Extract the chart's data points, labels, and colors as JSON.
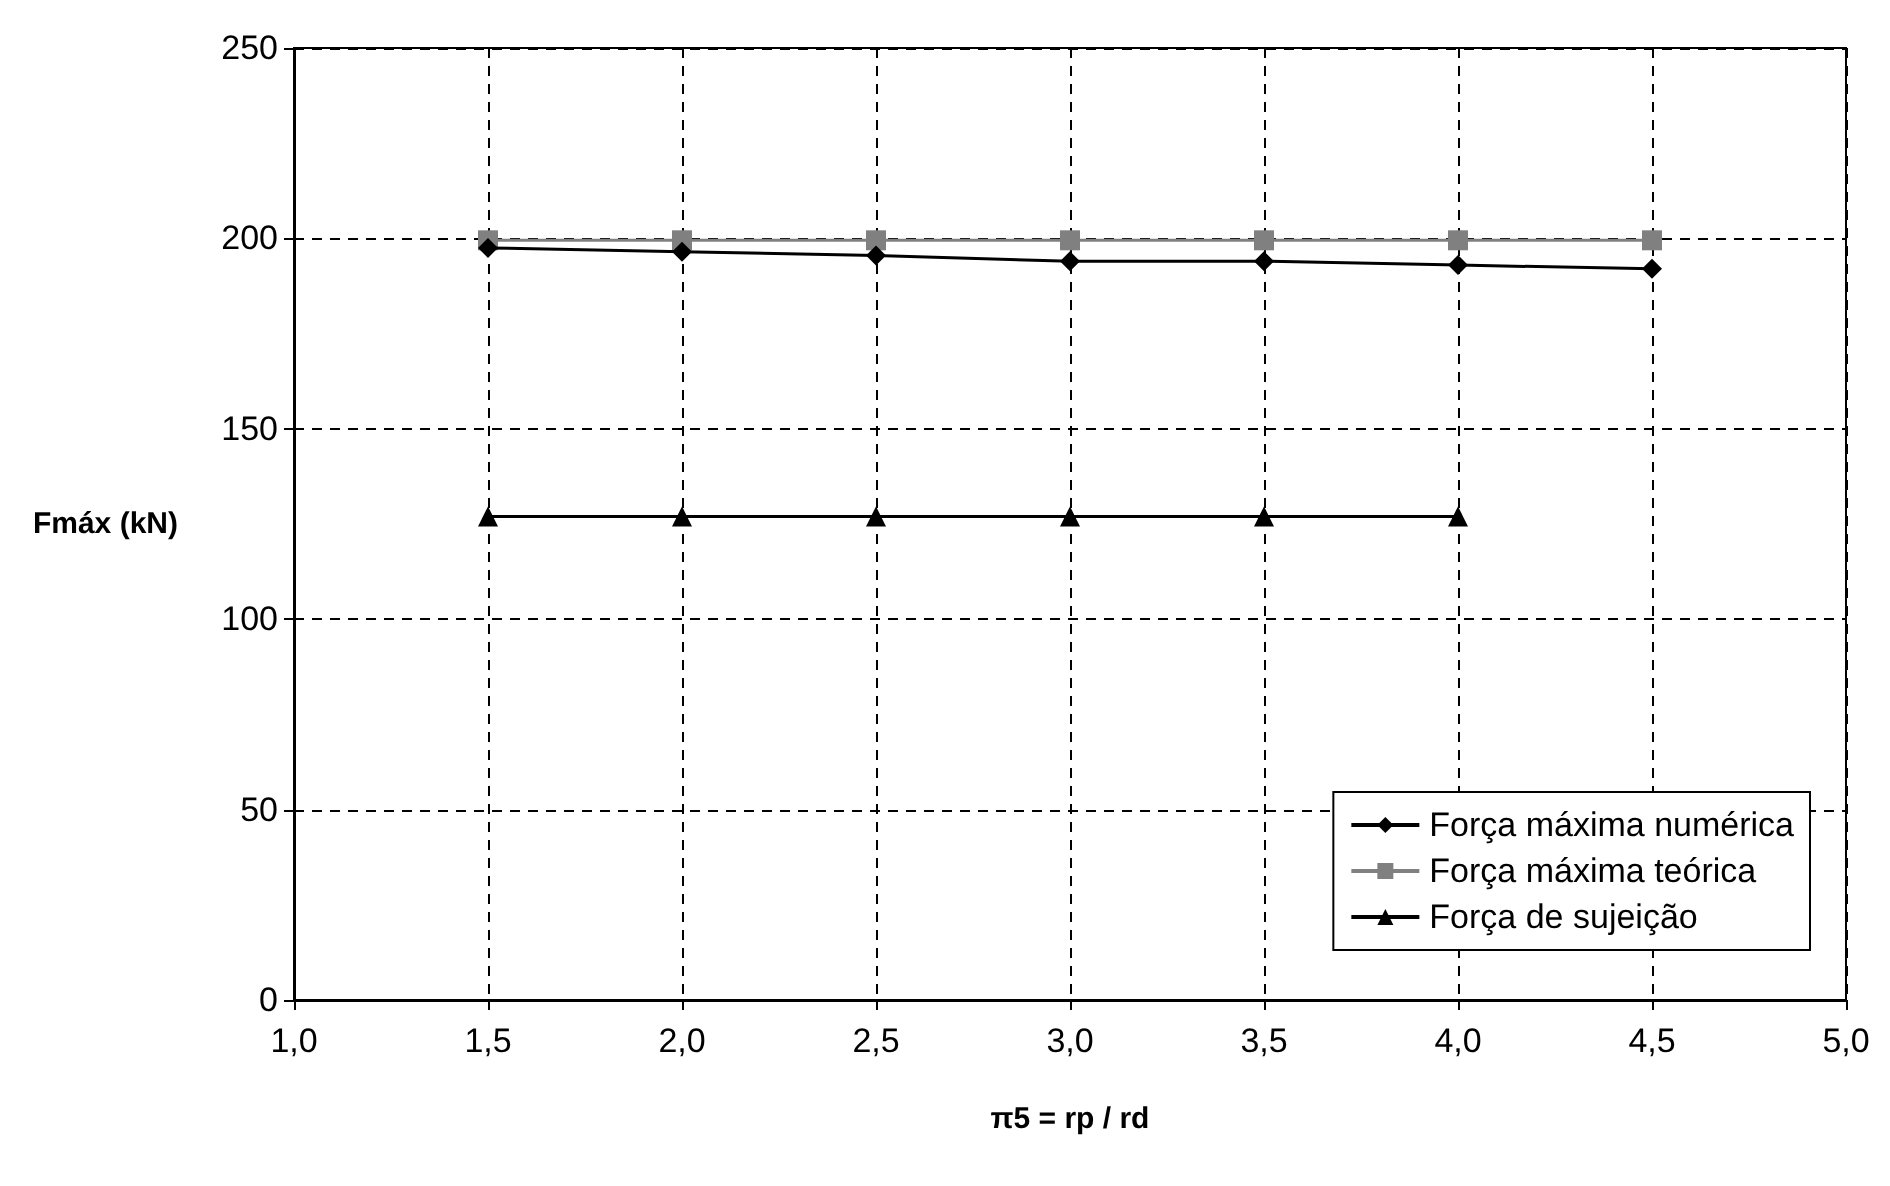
{
  "chart_data": {
    "type": "line",
    "xlabel": "π5 = rp / rd",
    "ylabel": "Fmáx (kN)",
    "xlim": [
      1,
      5
    ],
    "xticks": [
      {
        "value": 1,
        "label": "1,0"
      },
      {
        "value": 1.5,
        "label": "1,5"
      },
      {
        "value": 2,
        "label": "2,0"
      },
      {
        "value": 2.5,
        "label": "2,5"
      },
      {
        "value": 3,
        "label": "3,0"
      },
      {
        "value": 3.5,
        "label": "3,5"
      },
      {
        "value": 4,
        "label": "4,0"
      },
      {
        "value": 4.5,
        "label": "4,5"
      },
      {
        "value": 5,
        "label": "5,0"
      }
    ],
    "ylim": [
      0,
      250
    ],
    "yticks": [
      0,
      50,
      100,
      150,
      200,
      250
    ],
    "grid": true,
    "legend": "bottom right",
    "line_style": "solid",
    "series": [
      {
        "name": "Força máxima numérica",
        "color": "#000000",
        "marker": "diamond",
        "x": [
          1.5,
          2,
          2.5,
          3,
          3.5,
          4,
          4.5
        ],
        "values": [
          197.5,
          196.5,
          195.5,
          194,
          194,
          193,
          192
        ]
      },
      {
        "name": "Força máxima teórica",
        "color": "#808080",
        "marker": "square",
        "x": [
          1.5,
          2,
          2.5,
          3,
          3.5,
          4,
          4.5
        ],
        "values": [
          199.5,
          199.5,
          199.5,
          199.5,
          199.5,
          199.5,
          199.5
        ]
      },
      {
        "name": "Força de sujeição",
        "color": "#000000",
        "marker": "triangle",
        "x": [
          1.5,
          2,
          2.5,
          3,
          3.5,
          4
        ],
        "values": [
          127,
          127,
          127,
          127,
          127,
          127
        ]
      }
    ]
  }
}
